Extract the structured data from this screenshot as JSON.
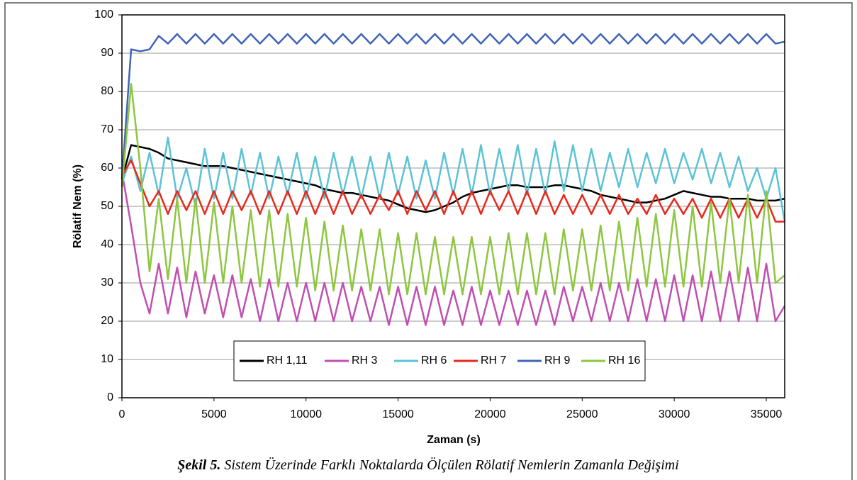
{
  "chart_data": {
    "type": "line",
    "x_label": "Zaman (s)",
    "y_label": "Rölatif Nem (%)",
    "caption": {
      "label": "Şekil 5.",
      "text": "Sistem Üzerinde Farklı Noktalarda Ölçülen Rölatif Nemlerin Zamanla Değişimi"
    },
    "x": [
      0,
      500,
      1000,
      1500,
      2000,
      2500,
      3000,
      3500,
      4000,
      4500,
      5000,
      5500,
      6000,
      6500,
      7000,
      7500,
      8000,
      8500,
      9000,
      9500,
      10000,
      10500,
      11000,
      11500,
      12000,
      12500,
      13000,
      13500,
      14000,
      14500,
      15000,
      15500,
      16000,
      16500,
      17000,
      17500,
      18000,
      18500,
      19000,
      19500,
      20000,
      20500,
      21000,
      21500,
      22000,
      22500,
      23000,
      23500,
      24000,
      24500,
      25000,
      25500,
      26000,
      26500,
      27000,
      27500,
      28000,
      28500,
      29000,
      29500,
      30000,
      30500,
      31000,
      31500,
      32000,
      32500,
      33000,
      33500,
      34000,
      34500,
      35000,
      35500,
      36000
    ],
    "series": [
      {
        "name": "RH 1,11",
        "color": "#000000",
        "values": [
          57,
          66,
          65.5,
          65,
          64,
          62.5,
          62,
          61.5,
          61,
          60.5,
          60.5,
          60.5,
          60,
          59.5,
          59,
          58.5,
          58,
          57.5,
          57,
          56.5,
          56,
          55.5,
          54.5,
          54,
          53.5,
          53.5,
          53,
          52.5,
          52,
          51.5,
          50.5,
          49.5,
          49,
          48.5,
          49,
          50,
          51,
          52.5,
          53.5,
          54,
          54.5,
          55,
          55.5,
          55.5,
          55,
          55,
          55,
          55.5,
          55.5,
          55,
          54.5,
          54,
          53,
          52.5,
          52,
          51.5,
          51,
          51,
          51.5,
          52,
          53,
          54,
          53.5,
          53,
          52.5,
          52.5,
          52,
          52,
          52,
          51.5,
          51.5,
          51.5,
          52
        ]
      },
      {
        "name": "RH 3",
        "color": "#c04fb0",
        "values": [
          59,
          45,
          30,
          22,
          35,
          22,
          34,
          21,
          33,
          22,
          32,
          21,
          32,
          21,
          31,
          20,
          31,
          20,
          30,
          20,
          30,
          20,
          30,
          20,
          30,
          20,
          29,
          20,
          29,
          19,
          29,
          19,
          29,
          19,
          29,
          19,
          28,
          19,
          29,
          19,
          28,
          19,
          28,
          19,
          28,
          19,
          28,
          19,
          29,
          20,
          29,
          20,
          30,
          20,
          30,
          20,
          31,
          20,
          31,
          20,
          32,
          20,
          32,
          20,
          33,
          20,
          33,
          20,
          34,
          20,
          35,
          20,
          24
        ]
      },
      {
        "name": "RH 6",
        "color": "#5bc3d6",
        "values": [
          56,
          63,
          54,
          64,
          53,
          68,
          52,
          60,
          50,
          65,
          52,
          64,
          52,
          65,
          53,
          64,
          52,
          63,
          53,
          64,
          52,
          63,
          52,
          64,
          53,
          63,
          52,
          63,
          52,
          64,
          53,
          63,
          52,
          62,
          52,
          64,
          53,
          65,
          53,
          66,
          53,
          65,
          54,
          66,
          53,
          65,
          53,
          67,
          54,
          66,
          54,
          65,
          54,
          64,
          55,
          65,
          55,
          64,
          56,
          65,
          56,
          64,
          57,
          65,
          56,
          64,
          55,
          63,
          54,
          60,
          52,
          60,
          46
        ]
      },
      {
        "name": "RH 7",
        "color": "#e8291c",
        "values": [
          58,
          62,
          56,
          50,
          54,
          48,
          54,
          49,
          54,
          48,
          54,
          48,
          54,
          49,
          54,
          48,
          54,
          48,
          54,
          48,
          54,
          48,
          54,
          48,
          54,
          48,
          53,
          48,
          53,
          49,
          54,
          48,
          54,
          49,
          54,
          48,
          54,
          48,
          54,
          48,
          54,
          49,
          54,
          48,
          54,
          48,
          54,
          48,
          53,
          48,
          53,
          48,
          53,
          48,
          53,
          48,
          52,
          48,
          53,
          48,
          52,
          48,
          52,
          47,
          52,
          47,
          52,
          47,
          52,
          47,
          52,
          46,
          46
        ]
      },
      {
        "name": "RH 9",
        "color": "#3f63b8",
        "values": [
          57,
          91,
          90.5,
          91,
          94.5,
          92.5,
          95,
          92.5,
          95,
          92.5,
          95,
          92.5,
          95,
          92.5,
          95,
          92.5,
          95,
          92.5,
          95,
          92.5,
          95,
          92.5,
          95,
          92.5,
          95,
          92.5,
          95,
          92.5,
          95,
          92.5,
          95,
          92.5,
          95,
          92.5,
          95,
          92.5,
          95,
          92.5,
          95,
          92.5,
          95,
          92.5,
          95,
          92.5,
          95,
          92.5,
          95,
          92.5,
          95,
          92.5,
          95,
          92.5,
          95,
          92.5,
          95,
          92.5,
          95,
          92.5,
          95,
          92.5,
          95,
          92.5,
          95,
          92.5,
          95,
          92.5,
          95,
          92.5,
          95,
          92.5,
          95,
          92.5,
          93
        ]
      },
      {
        "name": "RH 16",
        "color": "#8dc63f",
        "values": [
          55,
          82,
          60,
          33,
          52,
          31,
          52,
          30,
          52,
          30,
          51,
          30,
          50,
          30,
          49,
          29,
          49,
          29,
          48,
          29,
          47,
          28,
          46,
          28,
          45,
          28,
          44,
          28,
          44,
          27,
          43,
          27,
          43,
          27,
          42,
          27,
          42,
          27,
          42,
          27,
          42,
          27,
          43,
          27,
          43,
          27,
          43,
          27,
          44,
          28,
          44,
          28,
          45,
          28,
          46,
          28,
          47,
          29,
          48,
          29,
          49,
          29,
          50,
          29,
          51,
          30,
          52,
          30,
          53,
          30,
          54,
          30,
          32
        ]
      }
    ],
    "xlim": [
      0,
      36000
    ],
    "xticks": [
      0,
      5000,
      10000,
      15000,
      20000,
      25000,
      30000,
      35000
    ],
    "ylim": [
      0,
      100
    ],
    "yticks": [
      0,
      10,
      20,
      30,
      40,
      50,
      60,
      70,
      80,
      90,
      100
    ],
    "grid": true
  }
}
